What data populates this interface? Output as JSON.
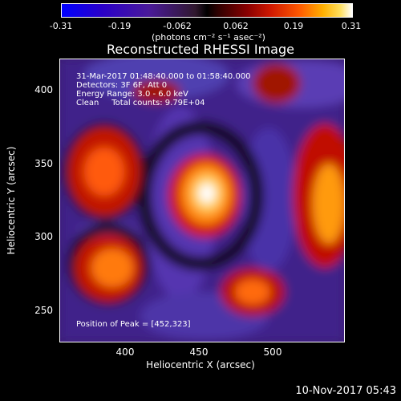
{
  "colorbar": {
    "ticks": [
      "-0.31",
      "-0.19",
      "-0.062",
      "0.062",
      "0.19",
      "0.31"
    ],
    "units": "(photons cm⁻² s⁻¹ asec⁻²)"
  },
  "chart_data": {
    "type": "heatmap",
    "title": "Reconstructed RHESSI Image",
    "xlabel": "Heliocentric X (arcsec)",
    "ylabel": "Heliocentric Y (arcsec)",
    "xlim": [
      358,
      545
    ],
    "ylim": [
      229,
      421
    ],
    "xticks": [
      "400",
      "450",
      "500"
    ],
    "yticks": [
      "400",
      "350",
      "300",
      "250"
    ],
    "zlim": [
      -0.31,
      0.31
    ],
    "colormap": "blue-purple-black-red-yellow-white",
    "sources": [
      {
        "x": 452,
        "y": 323,
        "value": 0.31
      },
      {
        "x": 395,
        "y": 350,
        "value": 0.18
      },
      {
        "x": 535,
        "y": 330,
        "value": 0.22
      },
      {
        "x": 390,
        "y": 290,
        "value": 0.2
      },
      {
        "x": 485,
        "y": 260,
        "value": 0.15
      }
    ],
    "peak": [
      452,
      323
    ]
  },
  "annotations": {
    "time": "31-Mar-2017 01:48:40.000 to 01:58:40.000",
    "detectors": "Detectors: 3F 6F, Att 0",
    "energy": "Energy Range: 3.0 - 6.0 keV",
    "clean": "Clean     Total counts: 9.79E+04",
    "peak": "Position of Peak = [452,323]"
  },
  "timestamp": "10-Nov-2017 05:43"
}
